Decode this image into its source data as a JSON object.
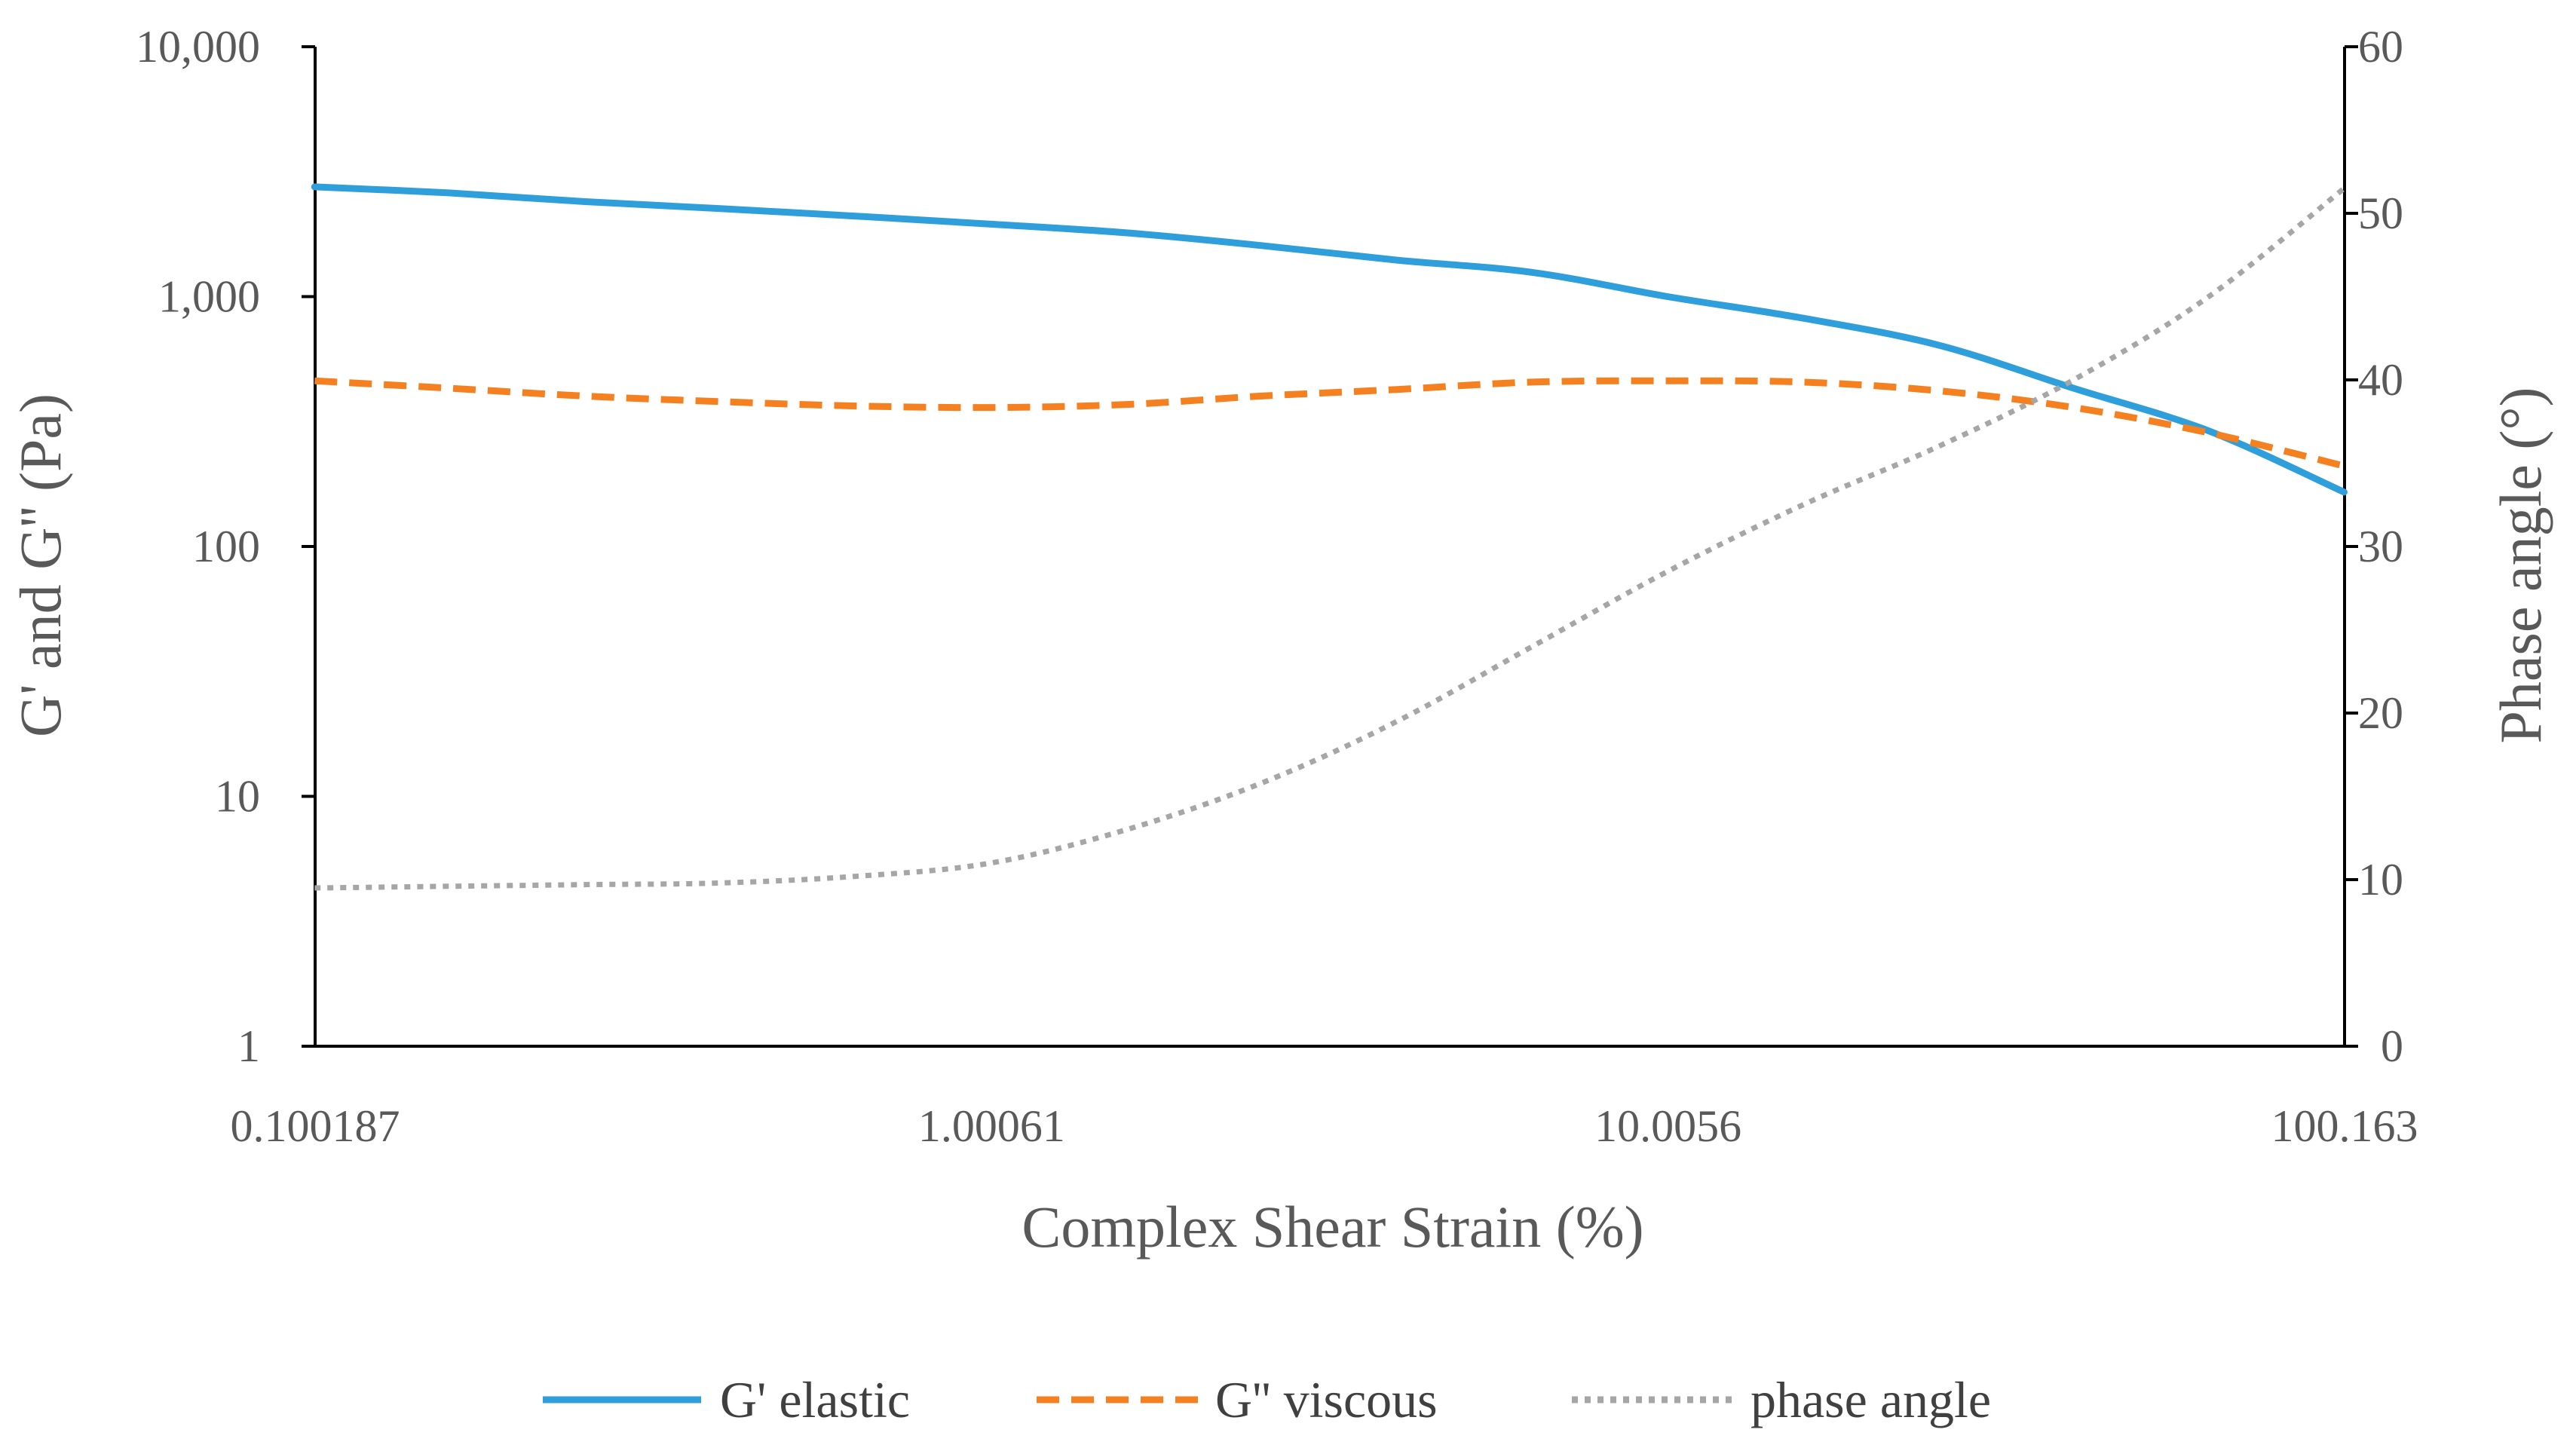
{
  "chart_data": {
    "type": "line",
    "title": "",
    "xlabel": "Complex Shear Strain (%)",
    "ylabel": "G' and G'' (Pa)",
    "y2label": "Phase angle (°)",
    "xscale": "log",
    "yscale": "log",
    "xlim": [
      0.100187,
      100.163
    ],
    "ylim": [
      1,
      10000
    ],
    "y2lim": [
      0,
      60
    ],
    "x_ticks": [
      "0.100187",
      "1.00061",
      "10.0056",
      "100.163"
    ],
    "y_ticks": [
      "1",
      "10",
      "100",
      "1,000",
      "10,000"
    ],
    "y2_ticks": [
      "0",
      "10",
      "20",
      "30",
      "40",
      "50",
      "60"
    ],
    "grid": false,
    "legend_position": "bottom",
    "x": [
      0.1,
      0.158,
      0.251,
      0.398,
      0.631,
      1.0,
      1.585,
      2.512,
      3.981,
      6.31,
      10.0,
      15.85,
      25.12,
      39.81,
      63.1,
      100.0
    ],
    "series": [
      {
        "name": "G' elastic",
        "axis": "left",
        "color": "#2E9FDB",
        "style": "solid",
        "values": [
          2750,
          2600,
          2400,
          2250,
          2100,
          1950,
          1800,
          1600,
          1400,
          1250,
          1000,
          820,
          640,
          430,
          290,
          165
        ]
      },
      {
        "name": "G'' viscous",
        "axis": "left",
        "color": "#F58020",
        "style": "dashed",
        "values": [
          460,
          430,
          400,
          380,
          365,
          360,
          370,
          400,
          425,
          455,
          460,
          455,
          420,
          360,
          285,
          210
        ]
      },
      {
        "name": "phase angle",
        "axis": "right",
        "color": "#A6A6A6",
        "style": "dotted",
        "values": [
          9.5,
          9.6,
          9.7,
          9.8,
          10.2,
          11.0,
          13.0,
          15.8,
          19.5,
          24.0,
          28.5,
          32.5,
          36.0,
          40.0,
          45.0,
          51.5
        ]
      }
    ]
  }
}
